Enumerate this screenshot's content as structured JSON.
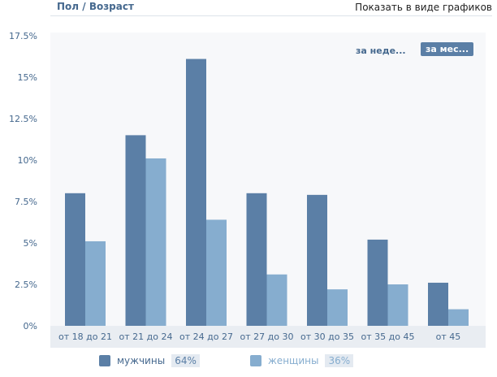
{
  "header": {
    "title": "Пол / Возраст",
    "toggle_label": "Показать в виде графиков"
  },
  "period_buttons": {
    "week": "за неде...",
    "month": "за мес..."
  },
  "legend": [
    {
      "label": "мужчины",
      "percent": "64%",
      "color": "#5b7fa6"
    },
    {
      "label": "женщины",
      "percent": "36%",
      "color": "#86adcf"
    }
  ],
  "chart_data": {
    "type": "bar",
    "categories": [
      "от 18 до 21",
      "от 21 до 24",
      "от 24 до 27",
      "от 27 до 30",
      "от 30 до 35",
      "от 35 до 45",
      "от 45"
    ],
    "series": [
      {
        "name": "мужчины",
        "values": [
          8.0,
          11.5,
          16.1,
          8.0,
          7.9,
          5.2,
          2.6
        ],
        "color": "#5b7fa6"
      },
      {
        "name": "женщины",
        "values": [
          5.1,
          10.1,
          6.4,
          3.1,
          2.2,
          2.5,
          1.0
        ],
        "color": "#86adcf"
      }
    ],
    "yticks": [
      "0%",
      "2.5%",
      "5%",
      "7.5%",
      "10%",
      "12.5%",
      "15%",
      "17.5%"
    ],
    "ylim": [
      0,
      17.5
    ],
    "grid": false
  }
}
